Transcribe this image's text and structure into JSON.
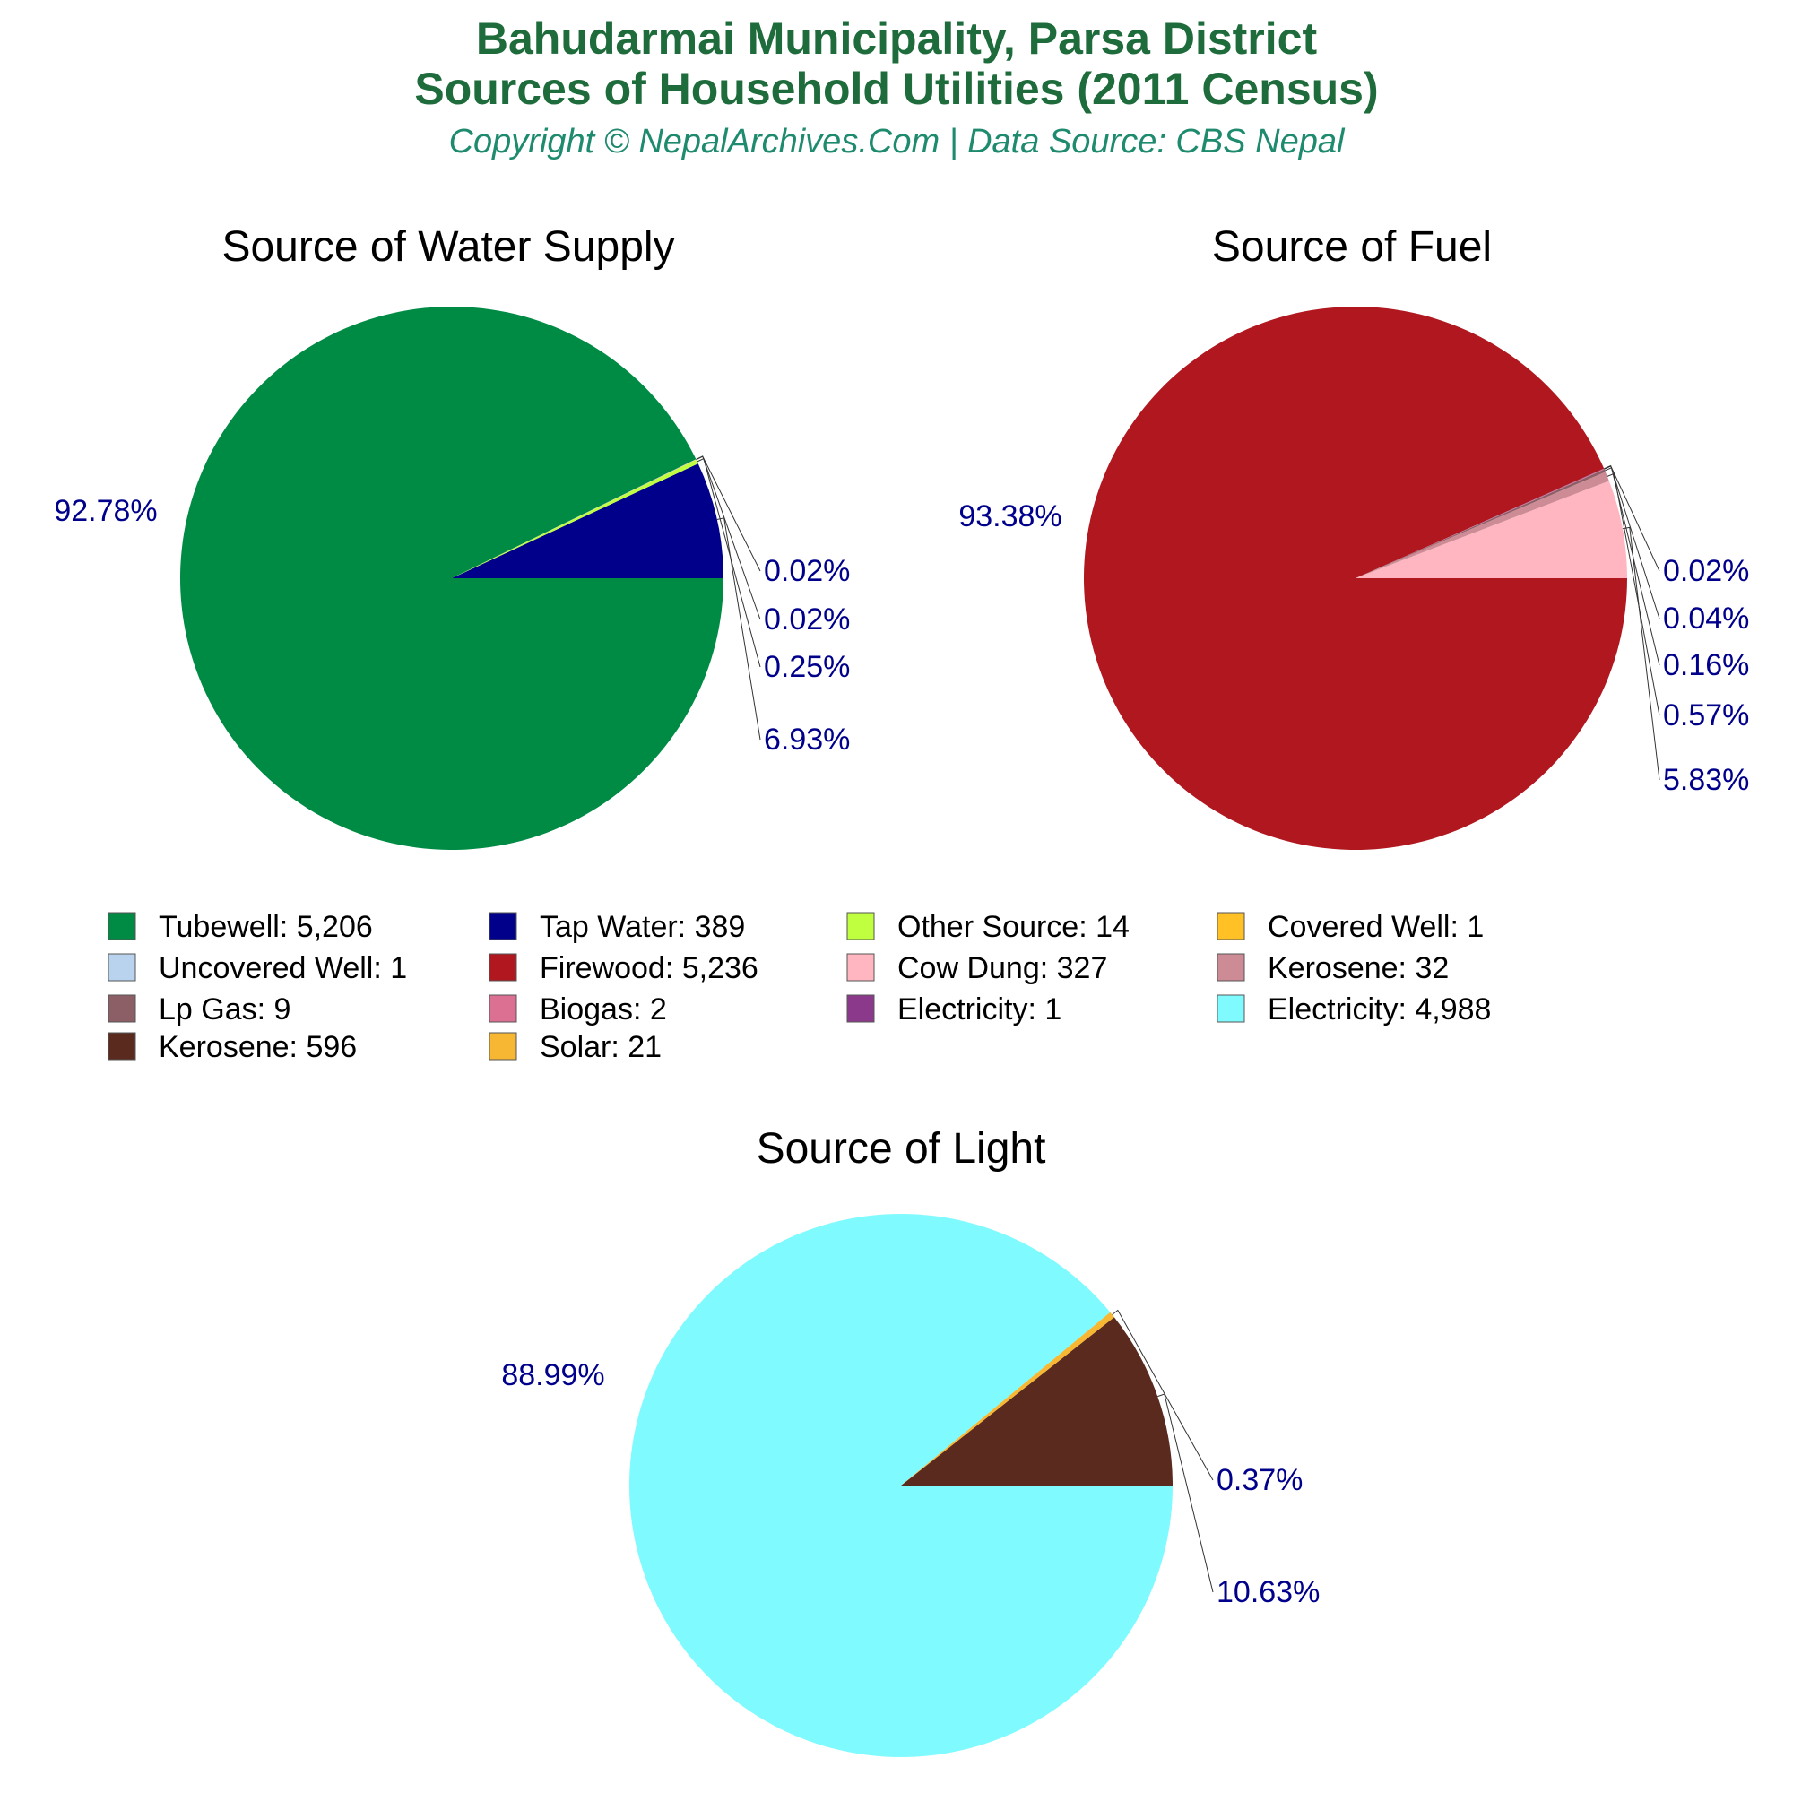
{
  "header": {
    "title_line1": "Bahudarmai Municipality, Parsa District",
    "title_line2": "Sources of Household Utilities (2011 Census)",
    "subtitle": "Copyright © NepalArchives.Com | Data Source: CBS Nepal"
  },
  "chart_data": [
    {
      "type": "pie",
      "title": "Source of Water Supply",
      "slices": [
        {
          "label": "Tubewell",
          "value": 5206,
          "display": "5,206",
          "percent": "92.78%",
          "color": "#008b45"
        },
        {
          "label": "Tap Water",
          "value": 389,
          "display": "389",
          "percent": "6.93%",
          "color": "#00008b"
        },
        {
          "label": "Other Source",
          "value": 14,
          "display": "14",
          "percent": "0.25%",
          "color": "#bfff3f"
        },
        {
          "label": "Covered Well",
          "value": 1,
          "display": "1",
          "percent": "0.02%",
          "color": "#ffc125"
        },
        {
          "label": "Uncovered Well",
          "value": 1,
          "display": "1",
          "percent": "0.02%",
          "color": "#b9d3ee"
        }
      ]
    },
    {
      "type": "pie",
      "title": "Source of Fuel",
      "slices": [
        {
          "label": "Firewood",
          "value": 5236,
          "display": "5,236",
          "percent": "93.38%",
          "color": "#b0171f"
        },
        {
          "label": "Cow Dung",
          "value": 327,
          "display": "327",
          "percent": "5.83%",
          "color": "#ffb6c1"
        },
        {
          "label": "Kerosene",
          "value": 32,
          "display": "32",
          "percent": "0.57%",
          "color": "#cd8c95"
        },
        {
          "label": "Lp Gas",
          "value": 9,
          "display": "9",
          "percent": "0.16%",
          "color": "#8b5f65"
        },
        {
          "label": "Biogas",
          "value": 2,
          "display": "2",
          "percent": "0.04%",
          "color": "#db7093"
        },
        {
          "label": "Electricity",
          "value": 1,
          "display": "1",
          "percent": "0.02%",
          "color": "#8b3a8b"
        }
      ]
    },
    {
      "type": "pie",
      "title": "Source of Light",
      "slices": [
        {
          "label": "Electricity",
          "value": 4988,
          "display": "4,988",
          "percent": "88.99%",
          "color": "#7ffaff"
        },
        {
          "label": "Kerosene",
          "value": 596,
          "display": "596",
          "percent": "10.63%",
          "color": "#5a2a1f"
        },
        {
          "label": "Solar",
          "value": 21,
          "display": "21",
          "percent": "0.37%",
          "color": "#f8b732"
        }
      ]
    }
  ],
  "legend": {
    "entries": [
      {
        "label": "Tubewell: 5,206",
        "color": "#008b45"
      },
      {
        "label": "Tap Water: 389",
        "color": "#00008b"
      },
      {
        "label": "Other Source: 14",
        "color": "#bfff3f"
      },
      {
        "label": "Covered Well: 1",
        "color": "#ffc125"
      },
      {
        "label": "Uncovered Well: 1",
        "color": "#b9d3ee"
      },
      {
        "label": "Firewood: 5,236",
        "color": "#b0171f"
      },
      {
        "label": "Cow Dung: 327",
        "color": "#ffb6c1"
      },
      {
        "label": "Kerosene: 32",
        "color": "#cd8c95"
      },
      {
        "label": "Lp Gas: 9",
        "color": "#8b5f65"
      },
      {
        "label": "Biogas: 2",
        "color": "#db7093"
      },
      {
        "label": "Electricity: 1",
        "color": "#8b3a8b"
      },
      {
        "label": "Electricity: 4,988",
        "color": "#7ffaff"
      },
      {
        "label": "Kerosene: 596",
        "color": "#5a2a1f"
      },
      {
        "label": "Solar: 21",
        "color": "#f8b732"
      }
    ]
  }
}
